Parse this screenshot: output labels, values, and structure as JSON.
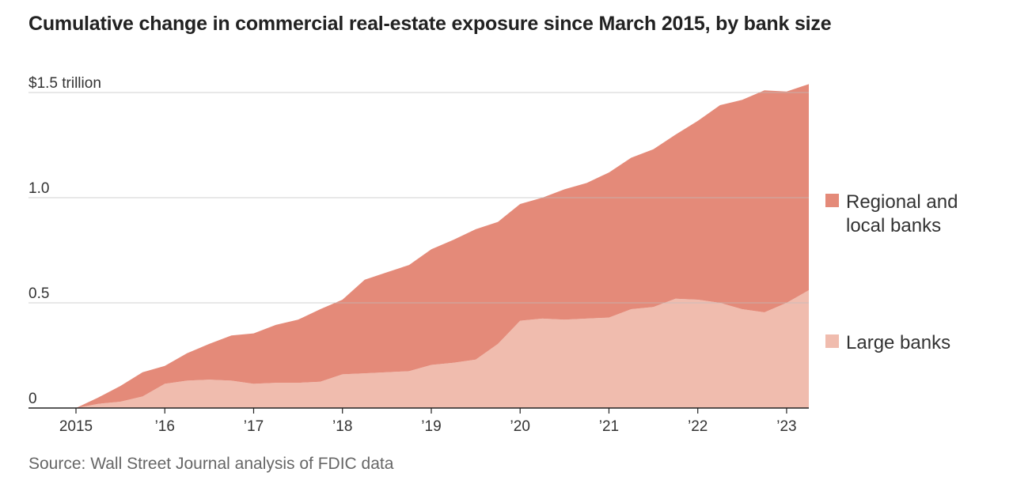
{
  "chart_data": {
    "type": "area",
    "stacked": true,
    "title": "Cumulative change in commercial real-estate exposure since March 2015, by bank size",
    "source": "Source: Wall Street Journal analysis of FDIC data",
    "xlim": [
      2015.0,
      2023.25
    ],
    "ylim": [
      0,
      1.5
    ],
    "y_ticks": [
      {
        "value": 0,
        "label": "0"
      },
      {
        "value": 0.5,
        "label": "0.5"
      },
      {
        "value": 1.0,
        "label": "1.0"
      },
      {
        "value": 1.5,
        "label": "$1.5 trillion"
      }
    ],
    "x_ticks": [
      {
        "value": 2015,
        "label": "2015"
      },
      {
        "value": 2016,
        "label": "’16"
      },
      {
        "value": 2017,
        "label": "’17"
      },
      {
        "value": 2018,
        "label": "’18"
      },
      {
        "value": 2019,
        "label": "’19"
      },
      {
        "value": 2020,
        "label": "’20"
      },
      {
        "value": 2021,
        "label": "’21"
      },
      {
        "value": 2022,
        "label": "’22"
      },
      {
        "value": 2023,
        "label": "’23"
      }
    ],
    "x": [
      2015.0,
      2015.25,
      2015.5,
      2015.75,
      2016.0,
      2016.25,
      2016.5,
      2016.75,
      2017.0,
      2017.25,
      2017.5,
      2017.75,
      2018.0,
      2018.25,
      2018.5,
      2018.75,
      2019.0,
      2019.25,
      2019.5,
      2019.75,
      2020.0,
      2020.25,
      2020.5,
      2020.75,
      2021.0,
      2021.25,
      2021.5,
      2021.75,
      2022.0,
      2022.25,
      2022.5,
      2022.75,
      2023.0,
      2023.25
    ],
    "series": [
      {
        "name": "Large banks",
        "legend_label": "Large banks",
        "color": "#f0bcae",
        "values": [
          0,
          0.02,
          0.03,
          0.055,
          0.115,
          0.13,
          0.135,
          0.13,
          0.115,
          0.12,
          0.12,
          0.125,
          0.16,
          0.165,
          0.17,
          0.175,
          0.205,
          0.215,
          0.23,
          0.305,
          0.415,
          0.425,
          0.42,
          0.425,
          0.43,
          0.47,
          0.48,
          0.52,
          0.515,
          0.5,
          0.47,
          0.455,
          0.5,
          0.56
        ]
      },
      {
        "name": "Regional and local banks",
        "legend_label": [
          "Regional and",
          "local banks"
        ],
        "color": "#e48a79",
        "values": [
          0,
          0.03,
          0.075,
          0.115,
          0.085,
          0.13,
          0.17,
          0.215,
          0.24,
          0.275,
          0.3,
          0.345,
          0.355,
          0.445,
          0.475,
          0.505,
          0.55,
          0.585,
          0.62,
          0.58,
          0.555,
          0.575,
          0.62,
          0.645,
          0.69,
          0.72,
          0.75,
          0.78,
          0.85,
          0.94,
          0.995,
          1.055,
          1.005,
          0.98
        ]
      }
    ]
  }
}
